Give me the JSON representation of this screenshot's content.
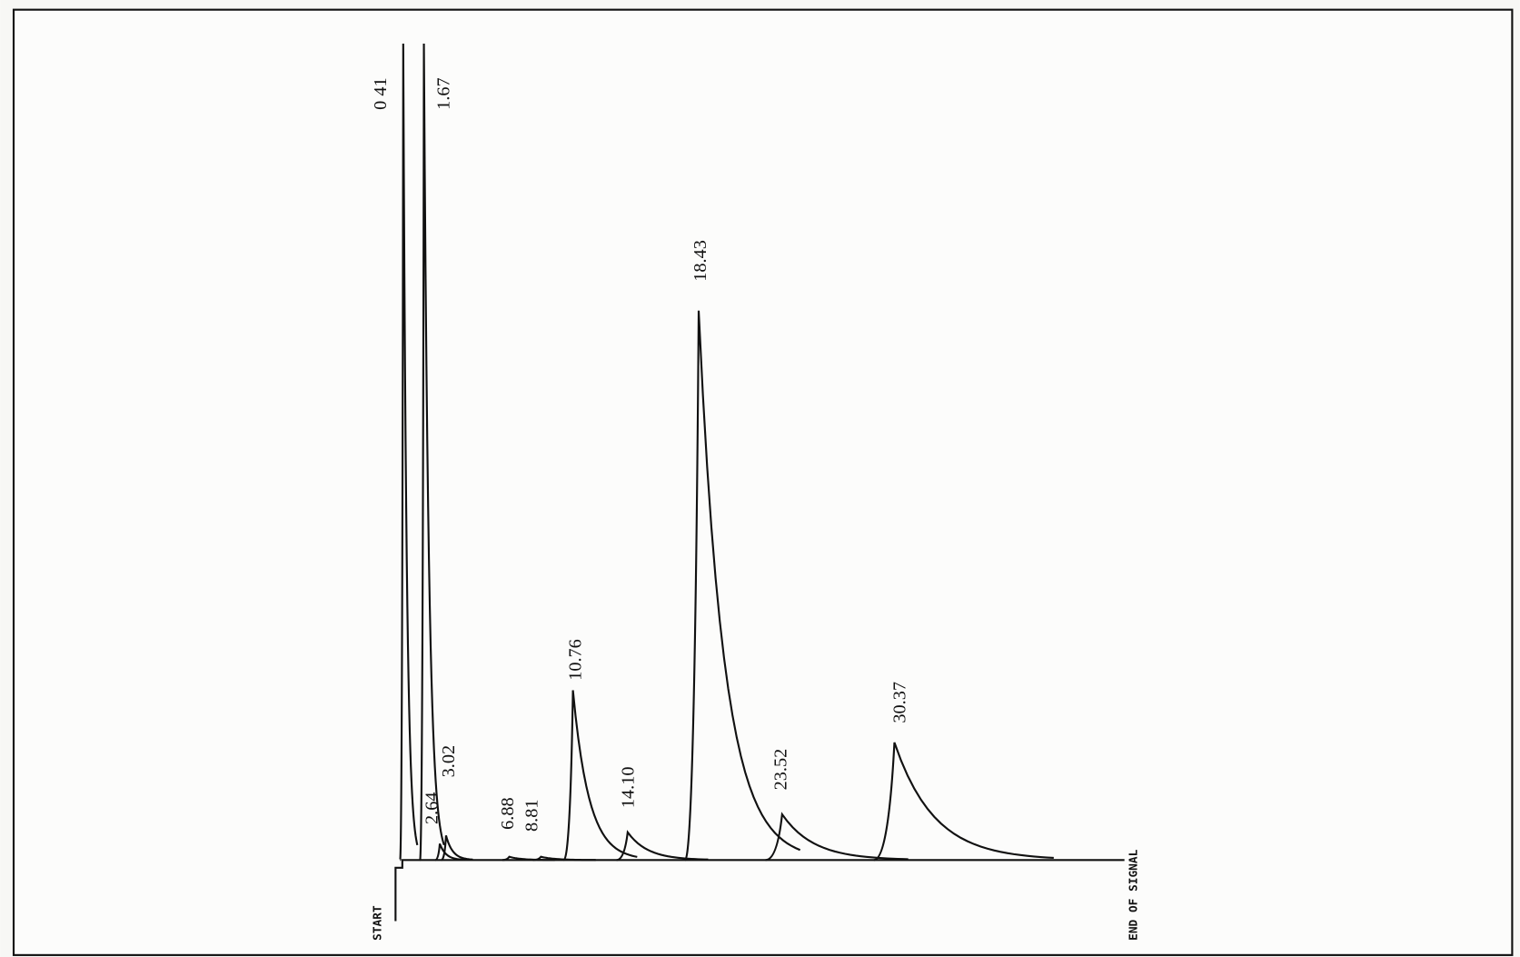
{
  "chart_data": {
    "type": "chromatogram",
    "x": [
      0.41,
      1.67,
      2.64,
      3.02,
      6.88,
      8.81,
      10.76,
      14.1,
      18.43,
      23.52,
      30.37
    ],
    "value_labels": [
      "0 41",
      "1.67",
      "2.64",
      "3.02",
      "6.88",
      "8.81",
      "10.76",
      "14.10",
      "18.43",
      "23.52",
      "30.37"
    ],
    "values": [
      100,
      100,
      2,
      3,
      0.4,
      0.4,
      20.8,
      3.4,
      67.3,
      5.6,
      14.4
    ],
    "xlim": [
      0,
      44.4
    ],
    "ylim": [
      0,
      100
    ],
    "start_label": "START",
    "end_label": "END OF SIGNAL",
    "color": "#111111"
  }
}
